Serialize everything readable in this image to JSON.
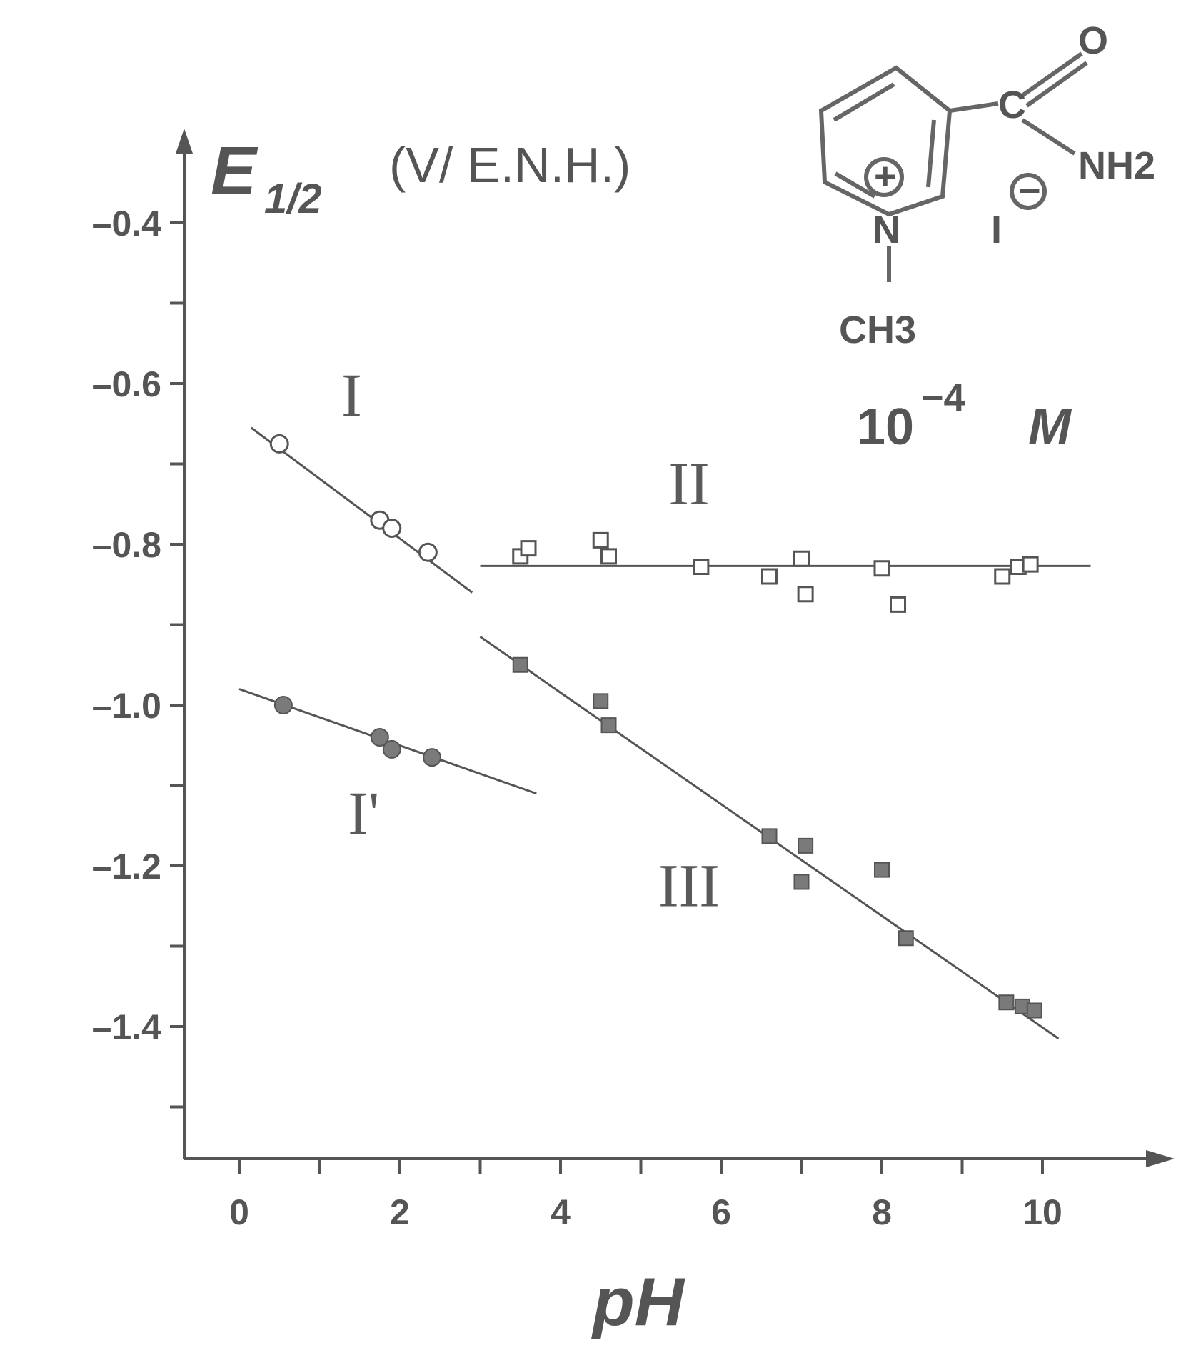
{
  "chart_data": {
    "type": "scatter",
    "title": "",
    "xlabel": "pH",
    "ylabel": "E",
    "ylabel_subscript": "1/2",
    "ylabel_unit": "(V/ E.N.H.)",
    "xlim": [
      -0.5,
      11.8
    ],
    "ylim": [
      -1.55,
      -0.37
    ],
    "x_ticks": [
      0,
      1,
      2,
      3,
      4,
      5,
      6,
      7,
      8,
      9,
      10
    ],
    "x_tick_labels": [
      "0",
      "",
      "2",
      "",
      "4",
      "",
      "6",
      "",
      "8",
      "",
      "10"
    ],
    "y_ticks": [
      -0.4,
      -0.5,
      -0.6,
      -0.7,
      -0.8,
      -0.9,
      -1.0,
      -1.1,
      -1.2,
      -1.3,
      -1.4,
      -1.5
    ],
    "y_tick_labels": [
      "–0.4",
      "",
      "–0.6",
      "",
      "–0.8",
      "",
      "–1.0",
      "",
      "–1.2",
      "",
      "–1.4",
      ""
    ],
    "grid": false,
    "series": [
      {
        "name": "I",
        "marker": "open-circle",
        "x": [
          0.5,
          1.75,
          1.9,
          2.35
        ],
        "y": [
          -0.675,
          -0.77,
          -0.78,
          -0.81
        ],
        "fit": {
          "x": [
            0.15,
            2.9
          ],
          "y": [
            -0.655,
            -0.86
          ]
        }
      },
      {
        "name": "I'",
        "marker": "filled-circle",
        "x": [
          0.55,
          1.75,
          1.9,
          2.4
        ],
        "y": [
          -1.0,
          -1.04,
          -1.055,
          -1.065
        ],
        "fit": {
          "x": [
            0.0,
            3.7
          ],
          "y": [
            -0.98,
            -1.11
          ]
        }
      },
      {
        "name": "II",
        "marker": "open-square",
        "x": [
          3.5,
          3.6,
          4.5,
          4.6,
          5.75,
          6.6,
          7.0,
          7.05,
          8.0,
          8.2,
          9.5,
          9.7,
          9.85
        ],
        "y": [
          -0.815,
          -0.805,
          -0.795,
          -0.815,
          -0.828,
          -0.84,
          -0.818,
          -0.862,
          -0.83,
          -0.875,
          -0.84,
          -0.828,
          -0.825
        ],
        "fit": {
          "x": [
            3.0,
            10.6
          ],
          "y": [
            -0.827,
            -0.827
          ]
        }
      },
      {
        "name": "III",
        "marker": "filled-square",
        "x": [
          3.5,
          4.5,
          4.6,
          6.6,
          7.05,
          7.0,
          8.0,
          8.3,
          9.55,
          9.75,
          9.9
        ],
        "y": [
          -0.95,
          -0.995,
          -1.025,
          -1.163,
          -1.175,
          -1.22,
          -1.205,
          -1.29,
          -1.37,
          -1.375,
          -1.38
        ],
        "fit": {
          "x": [
            3.0,
            10.2
          ],
          "y": [
            -0.915,
            -1.415
          ]
        }
      }
    ],
    "annotations": [
      {
        "text": "I",
        "x": 1.4,
        "y": -0.64
      },
      {
        "text": "I'",
        "x": 1.55,
        "y": -1.16
      },
      {
        "text": "II",
        "x": 5.6,
        "y": -0.75
      },
      {
        "text": "III",
        "x": 5.6,
        "y": -1.25
      }
    ]
  },
  "structure": {
    "ring_atom": "N",
    "charge_plus": "+",
    "substituent": "CH3",
    "carbonyl_carbon": "C",
    "carbonyl_oxygen": "O",
    "amide": "NH2",
    "counter_ion": "I",
    "charge_minus": "−",
    "concentration": "10",
    "concentration_exp": "−4",
    "concentration_unit": "M"
  },
  "colors": {
    "ink": "#555555",
    "marker_fill": "#7a7a7a",
    "background": "#ffffff"
  }
}
